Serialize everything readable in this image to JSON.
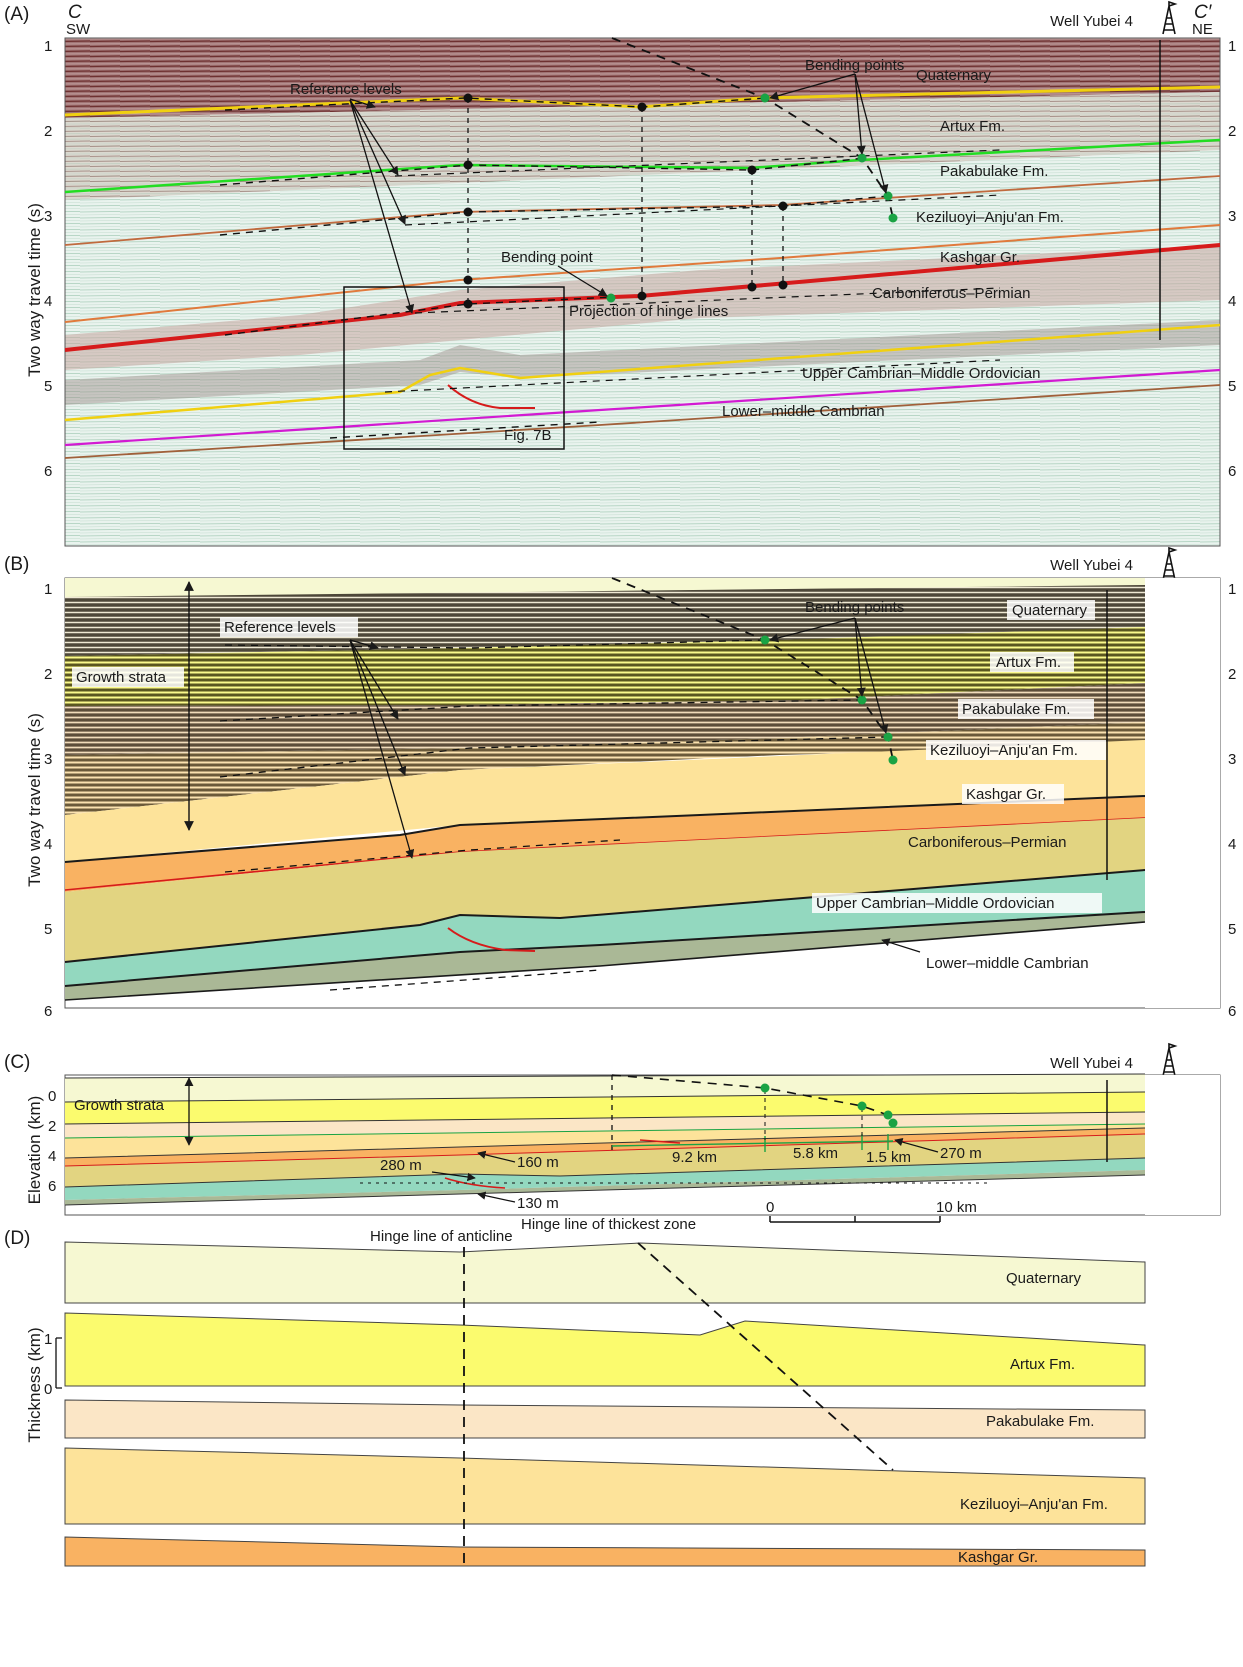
{
  "panels": {
    "a": {
      "tag": "(A)",
      "left_section": "C",
      "right_section": "C′",
      "left_dir": "SW",
      "right_dir": "NE",
      "well": "Well Yubei 4",
      "y_axis": "Two way travel time (s)",
      "ticks": [
        "1",
        "2",
        "3",
        "4",
        "5",
        "6"
      ],
      "units": [
        "Quaternary",
        "Artux Fm.",
        "Pakabulake Fm.",
        "Keziluoyi–Anju'an Fm.",
        "Kashgar Gr.",
        "Carboniferous–Permian",
        "Upper Cambrian–Middle Ordovician",
        "Lower–middle Cambrian"
      ],
      "notes": {
        "reference_levels": "Reference levels",
        "bending_points": "Bending points",
        "bending_point": "Bending point",
        "hinge_projection": "Projection of hinge lines",
        "inset": "Fig. 7B"
      }
    },
    "b": {
      "tag": "(B)",
      "well": "Well Yubei 4",
      "y_axis": "Two way travel time (s)",
      "ticks": [
        "1",
        "2",
        "3",
        "4",
        "5",
        "6"
      ],
      "units": [
        "Quaternary",
        "Artux Fm.",
        "Pakabulake Fm.",
        "Keziluoyi–Anju'an Fm.",
        "Kashgar Gr.",
        "Carboniferous–Permian",
        "Upper Cambrian–Middle Ordovician",
        "Lower–middle Cambrian"
      ],
      "notes": {
        "reference_levels": "Reference levels",
        "bending_points": "Bending points",
        "growth_strata": "Growth strata"
      }
    },
    "c": {
      "tag": "(C)",
      "well": "Well Yubei 4",
      "y_axis": "Elevation (km)",
      "ticks": [
        "0",
        "2",
        "4",
        "6"
      ],
      "notes": {
        "growth_strata": "Growth strata",
        "d1": "160 m",
        "d2": "280 m",
        "d3": "130 m",
        "w1": "9.2 km",
        "w2": "5.8 km",
        "w3": "1.5 km",
        "d4": "270 m",
        "hinge_thickest": "Hinge line of thickest zone"
      },
      "scale": {
        "start": "0",
        "end": "10 km"
      }
    },
    "d": {
      "tag": "(D)",
      "y_axis": "Thickness (km)",
      "ticks": [
        "0",
        "1"
      ],
      "hinge_anticline": "Hinge line of anticline",
      "units": [
        "Quaternary",
        "Artux Fm.",
        "Pakabulake Fm.",
        "Keziluoyi–Anju'an Fm.",
        "Kashgar Gr."
      ]
    }
  },
  "colors": {
    "quaternary": "#f6f8d2",
    "artux": "#fbfb6e",
    "pakabulake": "#fbe6c6",
    "keziluoyi": "#fde39a",
    "kashgar": "#f9b262",
    "carb_perm": "#e2d481",
    "cambrian_upper": "#93d8bf",
    "cambrian_lower": "#aab896",
    "horizon_yellow": "#f0d010",
    "horizon_green": "#22dd22",
    "horizon_red": "#d61b1b",
    "horizon_magenta": "#d21ad2",
    "bending_dot": "#1aa344"
  }
}
